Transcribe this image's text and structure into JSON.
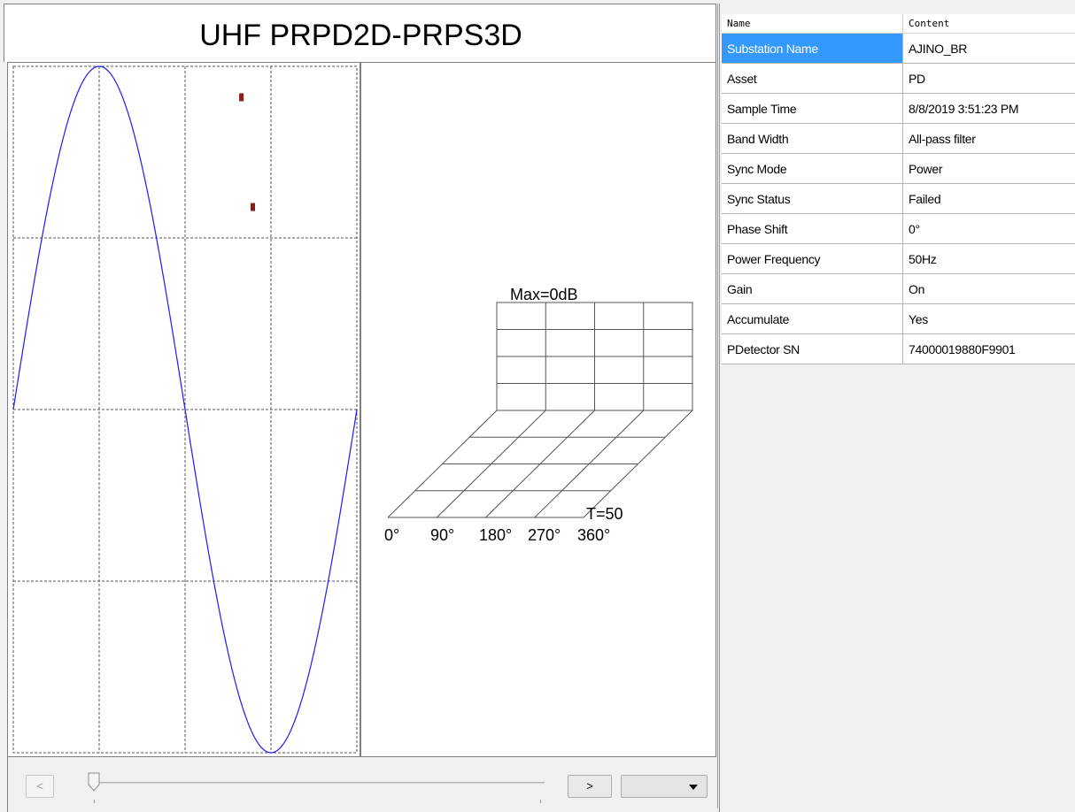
{
  "chart_panel": {
    "title": "UHF PRPD2D-PRPS3D",
    "prps": {
      "max_label": "Max=0dB",
      "t_label": "T=50",
      "phase_labels": [
        "0°",
        "90°",
        "180°",
        "270°",
        "360°"
      ]
    }
  },
  "chart_data": [
    {
      "type": "scatter",
      "title": "",
      "xlabel": "",
      "ylabel": "",
      "xlim": [
        0,
        360
      ],
      "ylim": [
        -1,
        1
      ],
      "grid": true,
      "reference_wave": {
        "name": "",
        "shape": "sine",
        "color": "#1a1aff"
      },
      "series": [
        {
          "name": "",
          "color": "#8b1a1a",
          "x": [
            239,
            251
          ],
          "y": [
            0.91,
            0.59
          ]
        }
      ]
    },
    {
      "type": "heatmap",
      "title": "",
      "zlabel": "Max=0dB",
      "xlabel": "",
      "x_ticks": [
        "0°",
        "90°",
        "180°",
        "270°",
        "360°"
      ],
      "depth_label": "T=50",
      "values": []
    }
  ],
  "controls": {
    "prev_label": "<",
    "next_label": ">",
    "slider_value": 0,
    "select_value": ""
  },
  "properties": {
    "header_name": "Name",
    "header_content": "Content",
    "rows": [
      {
        "name": "Substation Name",
        "value": "AJINO_BR"
      },
      {
        "name": "Asset",
        "value": "PD"
      },
      {
        "name": "Sample Time",
        "value": "8/8/2019 3:51:23 PM"
      },
      {
        "name": "Band Width",
        "value": "All-pass filter"
      },
      {
        "name": "Sync Mode",
        "value": "Power"
      },
      {
        "name": "Sync Status",
        "value": "Failed"
      },
      {
        "name": "Phase Shift",
        "value": "0°"
      },
      {
        "name": "Power Frequency",
        "value": "50Hz"
      },
      {
        "name": "Gain",
        "value": "On"
      },
      {
        "name": "Accumulate",
        "value": "Yes"
      },
      {
        "name": "PDetector SN",
        "value": "74000019880F9901"
      }
    ],
    "selected_row": 0
  },
  "colors": {
    "sine": "#1a1aff",
    "points": "#8b1a1a",
    "selection": "#3399ff"
  }
}
